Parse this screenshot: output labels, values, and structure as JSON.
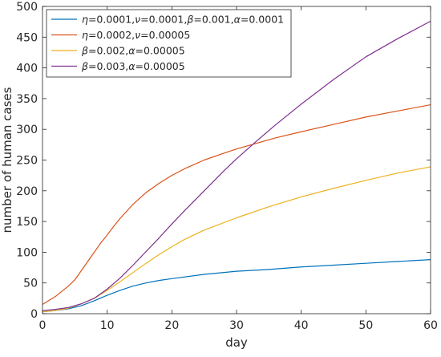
{
  "chart_data": {
    "type": "line",
    "title": "",
    "xlabel": "day",
    "ylabel": "number of human cases",
    "xlim": [
      0,
      60
    ],
    "ylim": [
      0,
      500
    ],
    "xticks": [
      "0",
      "10",
      "20",
      "30",
      "40",
      "50",
      "60"
    ],
    "yticks": [
      "0",
      "50",
      "100",
      "150",
      "200",
      "250",
      "300",
      "350",
      "400",
      "450",
      "500"
    ],
    "grid": false,
    "legend_position": "top-left",
    "legend": [
      "η=0.0001,ν=0.0001,β=0.001,α=0.0001",
      "η=0.0002,ν=0.00005",
      "β=0.002,α=0.00005",
      "β=0.003,α=0.00005"
    ],
    "series": [
      {
        "color": "#0072BD",
        "x": [
          0,
          2,
          4,
          6,
          8,
          10,
          12,
          14,
          16,
          18,
          20,
          25,
          30,
          35,
          40,
          45,
          50,
          55,
          60
        ],
        "y": [
          3,
          5,
          8,
          13,
          21,
          30,
          38,
          45,
          50,
          54,
          57,
          64,
          69,
          72,
          76,
          79,
          82,
          85,
          88
        ]
      },
      {
        "color": "#D95319",
        "x": [
          0,
          2,
          4,
          5,
          6,
          7,
          8,
          9,
          10,
          11,
          12,
          14,
          16,
          18,
          20,
          22,
          25,
          28,
          30,
          33,
          36,
          40,
          45,
          50,
          55,
          60
        ],
        "y": [
          15,
          28,
          45,
          55,
          70,
          85,
          100,
          115,
          128,
          142,
          155,
          178,
          197,
          212,
          225,
          236,
          250,
          261,
          268,
          277,
          286,
          296,
          308,
          320,
          330,
          340
        ]
      },
      {
        "color": "#EDB120",
        "x": [
          0,
          2,
          4,
          6,
          8,
          10,
          12,
          14,
          16,
          18,
          20,
          22,
          25,
          30,
          35,
          40,
          45,
          50,
          55,
          60
        ],
        "y": [
          3,
          5,
          9,
          16,
          25,
          38,
          52,
          67,
          82,
          96,
          109,
          121,
          136,
          156,
          174,
          190,
          204,
          217,
          229,
          239
        ]
      },
      {
        "color": "#7E2F8E",
        "x": [
          0,
          2,
          4,
          6,
          8,
          10,
          12,
          14,
          16,
          18,
          20,
          22,
          25,
          28,
          30,
          33,
          36,
          40,
          45,
          50,
          55,
          60
        ],
        "y": [
          5,
          7,
          10,
          16,
          25,
          40,
          58,
          79,
          101,
          123,
          146,
          168,
          200,
          232,
          252,
          280,
          307,
          341,
          381,
          418,
          448,
          476
        ]
      }
    ]
  }
}
